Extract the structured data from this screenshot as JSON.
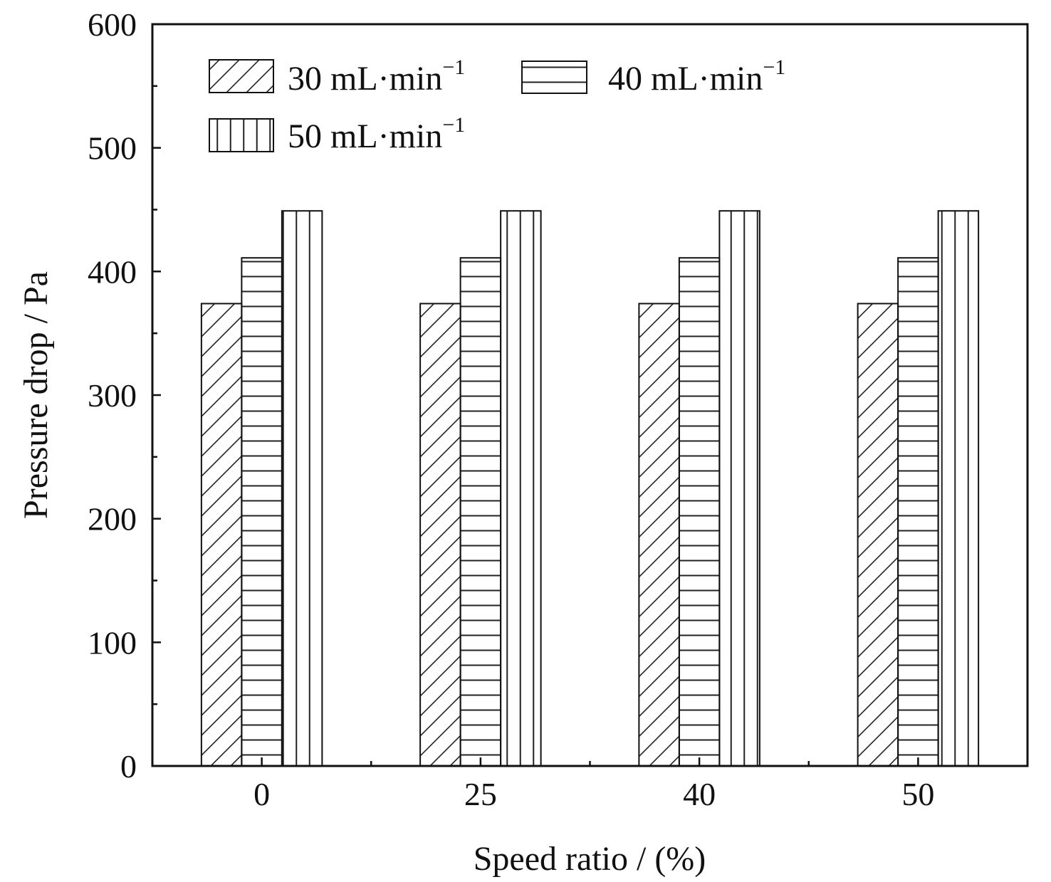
{
  "chart_data": {
    "type": "bar",
    "xlabel": "Speed ratio / (%)",
    "ylabel": "Pressure drop / Pa",
    "categories": [
      "0",
      "25",
      "40",
      "50"
    ],
    "ylim": [
      0,
      600
    ],
    "yticks": [
      0,
      100,
      200,
      300,
      400,
      500,
      600
    ],
    "grid": false,
    "legend_position": "top-left",
    "series": [
      {
        "name": "30 mL·min",
        "name_sup": "−1",
        "pattern": "diagonal-hatch",
        "values": [
          374,
          374,
          374,
          374
        ]
      },
      {
        "name": "40 mL·min",
        "name_sup": "−1",
        "pattern": "horizontal-lines",
        "values": [
          411,
          411,
          411,
          411
        ]
      },
      {
        "name": "50 mL·min",
        "name_sup": "−1",
        "pattern": "vertical-lines",
        "values": [
          449,
          449,
          449,
          449
        ]
      }
    ]
  }
}
